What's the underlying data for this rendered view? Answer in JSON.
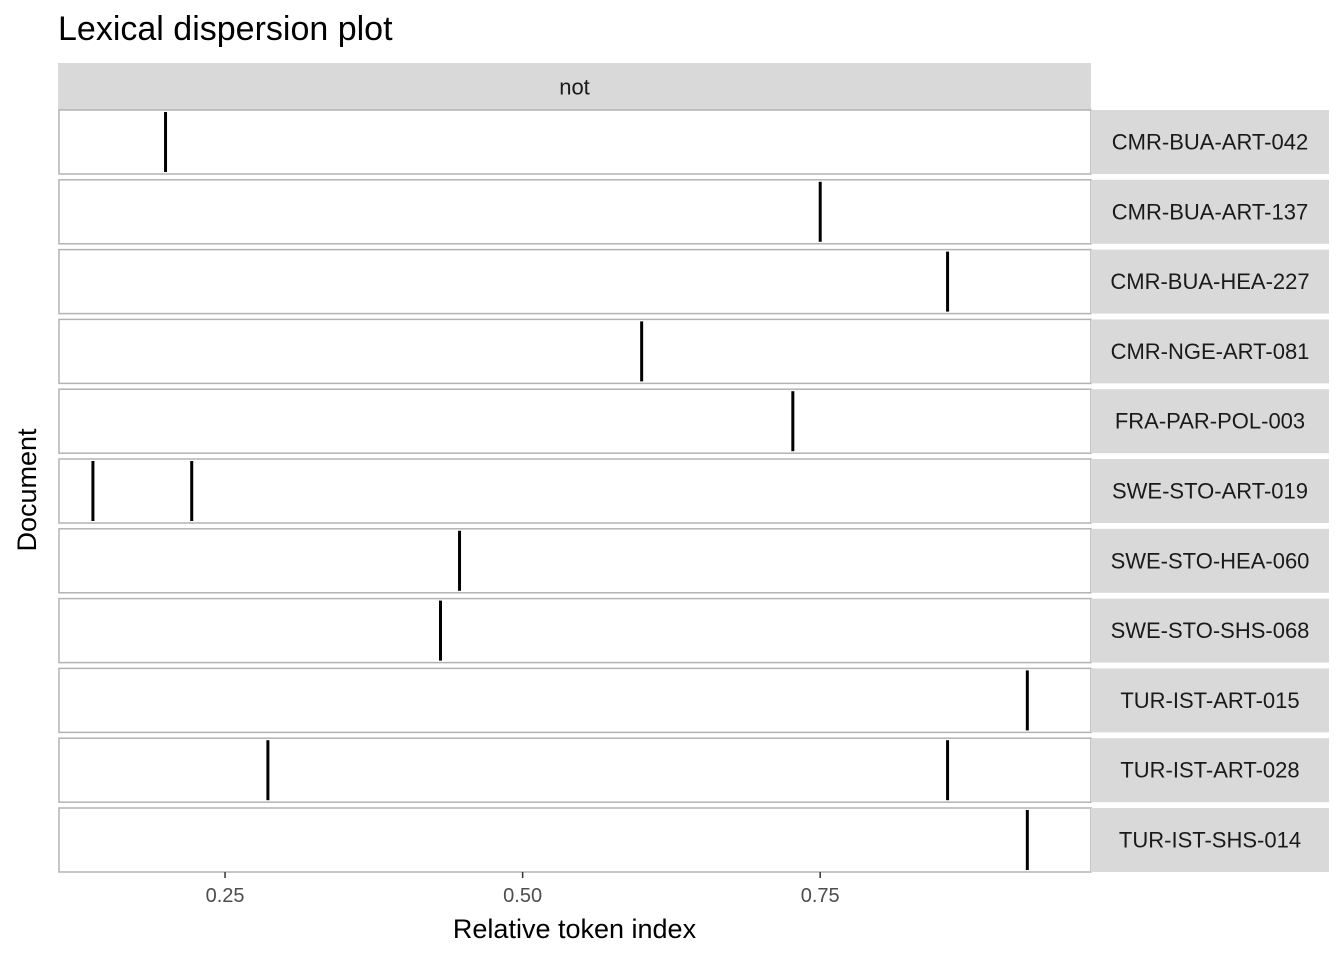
{
  "chart_data": {
    "type": "scatter",
    "title": "Lexical dispersion plot",
    "xlabel": "Relative token index",
    "ylabel": "Document",
    "facet_label": "not",
    "xlim": [
      0.1105,
      0.9775
    ],
    "x_ticks": [
      0.25,
      0.5,
      0.75
    ],
    "x_tick_labels": [
      "0.25",
      "0.50",
      "0.75"
    ],
    "grid": false,
    "legend": "none",
    "mark_color": "#000000",
    "panel_border_color": "#b3b3b3",
    "strip_fill": "#d9d9d9",
    "documents": [
      {
        "name": "CMR-BUA-ART-042",
        "x": [
          0.2
        ]
      },
      {
        "name": "CMR-BUA-ART-137",
        "x": [
          0.75
        ]
      },
      {
        "name": "CMR-BUA-HEA-227",
        "x": [
          0.857
        ]
      },
      {
        "name": "CMR-NGE-ART-081",
        "x": [
          0.6
        ]
      },
      {
        "name": "FRA-PAR-POL-003",
        "x": [
          0.727
        ]
      },
      {
        "name": "SWE-STO-ART-019",
        "x": [
          0.139,
          0.222
        ]
      },
      {
        "name": "SWE-STO-HEA-060",
        "x": [
          0.447
        ]
      },
      {
        "name": "SWE-STO-SHS-068",
        "x": [
          0.431
        ]
      },
      {
        "name": "TUR-IST-ART-015",
        "x": [
          0.924
        ]
      },
      {
        "name": "TUR-IST-ART-028",
        "x": [
          0.286,
          0.857
        ]
      },
      {
        "name": "TUR-IST-SHS-014",
        "x": [
          0.924
        ]
      }
    ]
  }
}
